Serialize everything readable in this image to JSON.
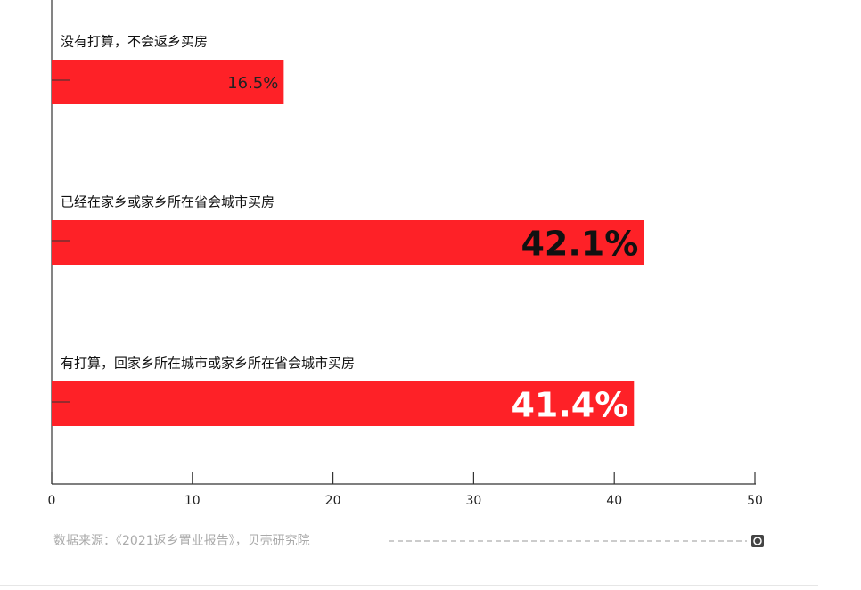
{
  "chart_data": {
    "type": "bar",
    "orientation": "horizontal",
    "categories": [
      "没有打算，不会返乡买房",
      "已经在家乡或家乡所在省会城市买房",
      "有打算，回家乡所在城市或家乡所在省会城市买房"
    ],
    "values": [
      16.5,
      42.1,
      41.4
    ],
    "value_labels": [
      "16.5%",
      "42.1%",
      "41.4%"
    ],
    "color": "#fe2127",
    "xlim": [
      0,
      50
    ],
    "xticks": [
      0,
      10,
      20,
      30,
      40,
      50
    ],
    "source": "数据来源：《2021返乡置业报告》，贝壳研究院"
  }
}
